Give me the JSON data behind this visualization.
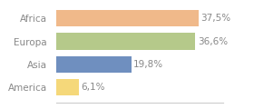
{
  "categories": [
    "Africa",
    "Europa",
    "Asia",
    "America"
  ],
  "values": [
    37.5,
    36.6,
    19.8,
    6.1
  ],
  "labels": [
    "37,5%",
    "36,6%",
    "19,8%",
    "6,1%"
  ],
  "bar_colors": [
    "#f0b98a",
    "#b5c98a",
    "#6f8fbf",
    "#f5d87a"
  ],
  "background_color": "#ffffff",
  "xlim": [
    0,
    44
  ],
  "bar_height": 0.72,
  "label_fontsize": 7.5,
  "tick_fontsize": 7.5,
  "tick_color": "#888888",
  "label_color": "#888888",
  "bottom_spine_color": "#cccccc"
}
